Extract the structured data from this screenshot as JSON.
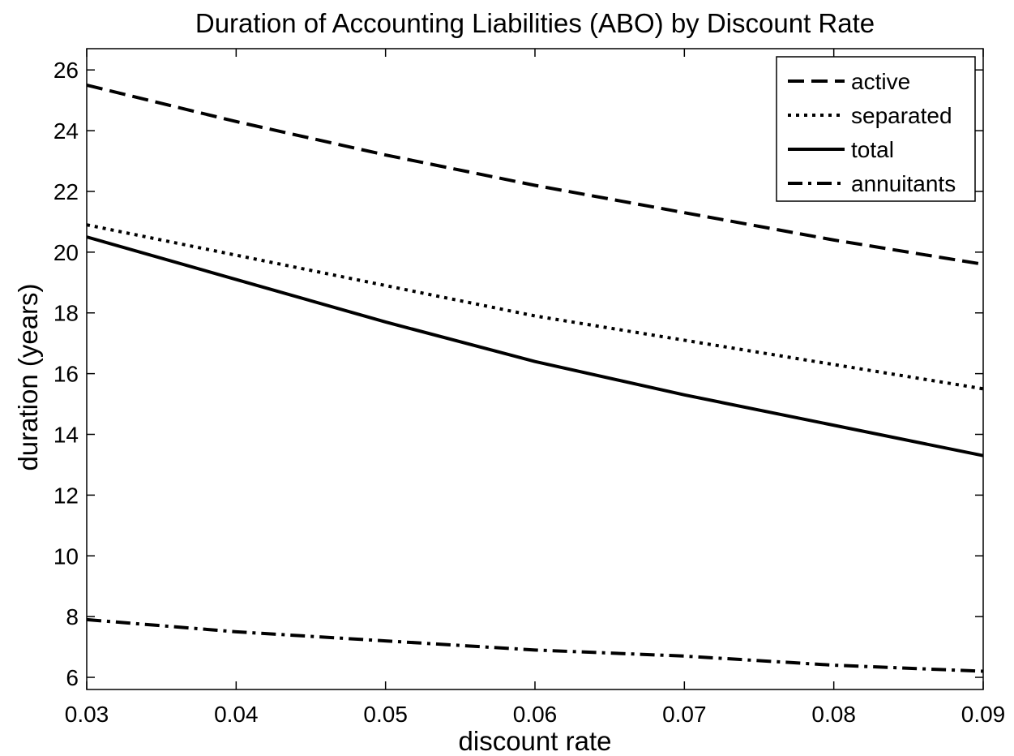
{
  "chart_data": {
    "type": "line",
    "title": "Duration of Accounting Liabilities (ABO) by Discount Rate",
    "xlabel": "discount rate",
    "ylabel": "duration (years)",
    "xlim": [
      0.03,
      0.09
    ],
    "ylim": [
      5.6,
      26.7
    ],
    "xticks": [
      "0.03",
      "0.04",
      "0.05",
      "0.06",
      "0.07",
      "0.08",
      "0.09"
    ],
    "yticks": [
      "6",
      "8",
      "10",
      "12",
      "14",
      "16",
      "18",
      "20",
      "22",
      "24",
      "26"
    ],
    "grid": false,
    "legend_position": "top-right",
    "x": [
      0.03,
      0.04,
      0.05,
      0.06,
      0.07,
      0.08,
      0.09
    ],
    "series": [
      {
        "name": "active",
        "style": "dashed",
        "values": [
          25.5,
          24.3,
          23.2,
          22.2,
          21.3,
          20.4,
          19.6
        ]
      },
      {
        "name": "separated",
        "style": "dotted",
        "values": [
          20.9,
          19.9,
          18.9,
          17.9,
          17.1,
          16.3,
          15.5
        ]
      },
      {
        "name": "total",
        "style": "solid",
        "values": [
          20.5,
          19.1,
          17.7,
          16.4,
          15.3,
          14.3,
          13.3
        ]
      },
      {
        "name": "annuitants",
        "style": "dashdot",
        "values": [
          7.9,
          7.5,
          7.2,
          6.9,
          6.7,
          6.4,
          6.2
        ]
      }
    ]
  }
}
